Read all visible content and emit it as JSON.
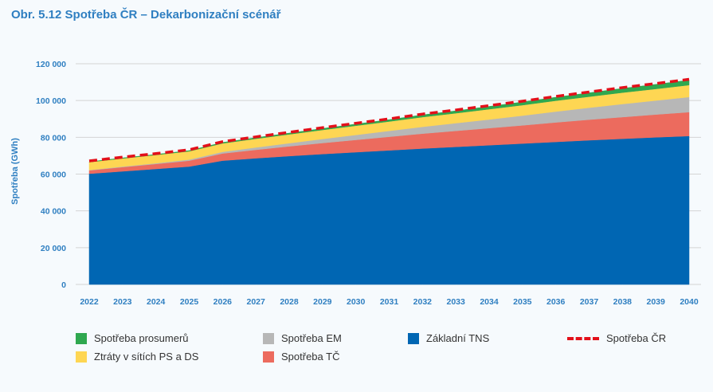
{
  "title": "Obr. 5.12 Spotřeba ČR – Dekarbonizační scénář",
  "chart_data": {
    "type": "area",
    "stacked": true,
    "title": "Obr. 5.12 Spotřeba ČR – Dekarbonizační scénář",
    "xlabel": "",
    "ylabel": "Spotřeba (GWh)",
    "ylim": [
      0,
      120000
    ],
    "yticks": [
      "0",
      "20 000",
      "40 000",
      "60 000",
      "80 000",
      "100 000",
      "120 000"
    ],
    "ytick_values": [
      0,
      20000,
      40000,
      60000,
      80000,
      100000,
      120000
    ],
    "grid": true,
    "legend_position": "bottom",
    "categories": [
      "2022",
      "2023",
      "2024",
      "2025",
      "2026",
      "2027",
      "2028",
      "2029",
      "2030",
      "2031",
      "2032",
      "2033",
      "2034",
      "2035",
      "2036",
      "2037",
      "2038",
      "2039",
      "2040"
    ],
    "series": [
      {
        "name": "Základní TNS",
        "color": "#0066b3",
        "values": [
          60200,
          61500,
          62800,
          64100,
          67300,
          68600,
          69800,
          70900,
          71900,
          72900,
          73900,
          74800,
          75700,
          76600,
          77500,
          78400,
          79200,
          80000,
          80700
        ]
      },
      {
        "name": "Spotřeba TČ",
        "color": "#ec6b5e",
        "values": [
          1800,
          2300,
          2700,
          3200,
          3900,
          4600,
          5300,
          6000,
          6700,
          7400,
          8100,
          8700,
          9300,
          9900,
          10600,
          11200,
          11800,
          12400,
          13000
        ]
      },
      {
        "name": "Spotřeba EM",
        "color": "#b7b7b7",
        "values": [
          200,
          300,
          400,
          600,
          900,
          1300,
          1700,
          2200,
          2700,
          3200,
          3700,
          4200,
          4700,
          5300,
          5900,
          6500,
          7100,
          7600,
          8200
        ]
      },
      {
        "name": "Ztráty v sítích PS a DS",
        "color": "#fed653",
        "values": [
          4300,
          4400,
          4500,
          4500,
          4600,
          4700,
          4800,
          4900,
          5000,
          5100,
          5300,
          5400,
          5600,
          5700,
          5900,
          6000,
          6200,
          6300,
          6500
        ]
      },
      {
        "name": "Spotřeba prosumerů",
        "color": "#2fa84f",
        "values": [
          200,
          300,
          300,
          400,
          500,
          600,
          700,
          800,
          900,
          1000,
          1200,
          1300,
          1500,
          1700,
          1900,
          2100,
          2300,
          2500,
          2700
        ]
      }
    ],
    "line_series": {
      "name": "Spotřeba ČR",
      "color": "#e3101a",
      "style": "dashed",
      "values": [
        66700,
        68800,
        70700,
        72800,
        77200,
        79800,
        82300,
        84800,
        87200,
        89600,
        92200,
        94400,
        96800,
        99200,
        101800,
        104200,
        106600,
        108800,
        111100
      ]
    },
    "legend": [
      "Spotřeba prosumerů",
      "Ztráty v sítích PS a DS",
      "Spotřeba EM",
      "Spotřeba TČ",
      "Základní TNS",
      "Spotřeba ČR"
    ]
  }
}
